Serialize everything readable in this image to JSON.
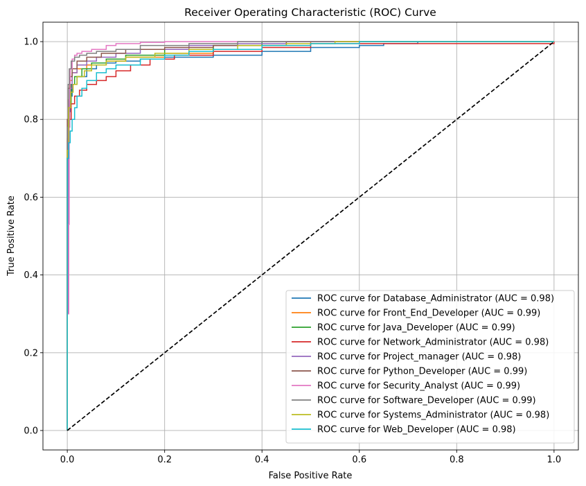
{
  "chart_data": {
    "type": "line",
    "title": "Receiver Operating Characteristic (ROC) Curve",
    "xlabel": "False Positive Rate",
    "ylabel": "True Positive Rate",
    "xlim": [
      -0.05,
      1.05
    ],
    "ylim": [
      -0.05,
      1.05
    ],
    "xticks": [
      "0.0",
      "0.2",
      "0.4",
      "0.6",
      "0.8",
      "1.0"
    ],
    "yticks": [
      "0.0",
      "0.2",
      "0.4",
      "0.6",
      "0.8",
      "1.0"
    ],
    "grid": true,
    "legend_position": "bottom-right",
    "series": [
      {
        "name": "ROC curve for Database_Administrator (AUC = 0.98)",
        "color": "#1f77b4",
        "x": [
          0,
          0,
          0.003,
          0.006,
          0.01,
          0.02,
          0.04,
          0.06,
          0.08,
          0.1,
          0.15,
          0.2,
          0.3,
          0.4,
          0.5,
          0.6,
          0.65,
          0.72,
          0.72,
          0.85,
          1.0
        ],
        "y": [
          0,
          0.7,
          0.82,
          0.86,
          0.89,
          0.91,
          0.93,
          0.94,
          0.945,
          0.95,
          0.955,
          0.96,
          0.965,
          0.975,
          0.985,
          0.99,
          0.995,
          0.995,
          1.0,
          1.0,
          1.0
        ]
      },
      {
        "name": "ROC curve for Front_End_Developer (AUC = 0.99)",
        "color": "#ff7f0e",
        "x": [
          0,
          0,
          0.002,
          0.005,
          0.01,
          0.02,
          0.04,
          0.08,
          0.12,
          0.2,
          0.3,
          0.4,
          0.5,
          1.0
        ],
        "y": [
          0,
          0.75,
          0.85,
          0.9,
          0.92,
          0.93,
          0.94,
          0.95,
          0.96,
          0.97,
          0.98,
          0.99,
          1.0,
          1.0
        ]
      },
      {
        "name": "ROC curve for Java_Developer (AUC = 0.99)",
        "color": "#2ca02c",
        "x": [
          0,
          0,
          0.003,
          0.008,
          0.015,
          0.03,
          0.05,
          0.08,
          0.12,
          0.2,
          0.3,
          0.4,
          1.0
        ],
        "y": [
          0,
          0.72,
          0.84,
          0.89,
          0.91,
          0.93,
          0.945,
          0.955,
          0.965,
          0.98,
          0.99,
          1.0,
          1.0
        ]
      },
      {
        "name": "ROC curve for Network_Administrator (AUC = 0.98)",
        "color": "#d62728",
        "x": [
          0,
          0,
          0.003,
          0.008,
          0.015,
          0.025,
          0.04,
          0.06,
          0.08,
          0.1,
          0.13,
          0.17,
          0.22,
          0.3,
          0.4,
          0.5,
          1.0
        ],
        "y": [
          0,
          0.7,
          0.8,
          0.84,
          0.86,
          0.875,
          0.89,
          0.9,
          0.91,
          0.925,
          0.94,
          0.955,
          0.965,
          0.975,
          0.985,
          0.995,
          1.0
        ]
      },
      {
        "name": "ROC curve for Project_manager (AUC = 0.98)",
        "color": "#9467bd",
        "x": [
          0,
          0,
          0.002,
          0.005,
          0.01,
          0.02,
          0.04,
          0.06,
          0.1,
          0.15,
          0.25,
          0.35,
          0.45,
          1.0
        ],
        "y": [
          0,
          0.3,
          0.78,
          0.88,
          0.92,
          0.94,
          0.95,
          0.96,
          0.97,
          0.98,
          0.99,
          0.995,
          1.0,
          1.0
        ]
      },
      {
        "name": "ROC curve for Python_Developer (AUC = 0.99)",
        "color": "#8c564b",
        "x": [
          0,
          0,
          0.002,
          0.005,
          0.01,
          0.02,
          0.04,
          0.07,
          0.12,
          0.2,
          0.3,
          0.45,
          1.0
        ],
        "y": [
          0,
          0.8,
          0.88,
          0.91,
          0.93,
          0.95,
          0.96,
          0.97,
          0.98,
          0.985,
          0.99,
          1.0,
          1.0
        ]
      },
      {
        "name": "ROC curve for Security_Analyst (AUC = 0.99)",
        "color": "#e377c2",
        "x": [
          0,
          0,
          0.003,
          0.004,
          0.006,
          0.01,
          0.015,
          0.02,
          0.03,
          0.05,
          0.08,
          0.1,
          0.15,
          0.2,
          0.3,
          1.0
        ],
        "y": [
          0,
          0.3,
          0.53,
          0.85,
          0.93,
          0.955,
          0.965,
          0.97,
          0.975,
          0.98,
          0.99,
          0.995,
          0.998,
          1.0,
          1.0,
          1.0
        ]
      },
      {
        "name": "ROC curve for Software_Developer (AUC = 0.99)",
        "color": "#7f7f7f",
        "x": [
          0,
          0,
          0.002,
          0.004,
          0.008,
          0.015,
          0.025,
          0.04,
          0.06,
          0.1,
          0.15,
          0.25,
          0.35,
          1.0
        ],
        "y": [
          0,
          0.78,
          0.89,
          0.93,
          0.95,
          0.96,
          0.965,
          0.97,
          0.975,
          0.98,
          0.99,
          0.995,
          1.0,
          1.0
        ]
      },
      {
        "name": "ROC curve for Systems_Administrator (AUC = 0.98)",
        "color": "#bcbd22",
        "x": [
          0,
          0,
          0.003,
          0.007,
          0.012,
          0.02,
          0.035,
          0.05,
          0.08,
          0.12,
          0.18,
          0.25,
          0.35,
          0.45,
          0.55,
          1.0
        ],
        "y": [
          0,
          0.72,
          0.83,
          0.87,
          0.89,
          0.91,
          0.925,
          0.94,
          0.95,
          0.96,
          0.97,
          0.98,
          0.99,
          0.995,
          1.0,
          1.0
        ]
      },
      {
        "name": "ROC curve for Web_Developer (AUC = 0.98)",
        "color": "#17becf",
        "x": [
          0,
          0,
          0.003,
          0.006,
          0.01,
          0.015,
          0.02,
          0.03,
          0.04,
          0.06,
          0.08,
          0.1,
          0.15,
          0.2,
          0.25,
          0.3,
          0.4,
          0.5,
          0.6,
          1.0
        ],
        "y": [
          0,
          0.7,
          0.74,
          0.77,
          0.8,
          0.83,
          0.86,
          0.88,
          0.9,
          0.92,
          0.93,
          0.94,
          0.955,
          0.965,
          0.975,
          0.98,
          0.99,
          0.995,
          1.0,
          1.0
        ]
      }
    ],
    "reference_line": {
      "x": [
        0,
        1
      ],
      "y": [
        0,
        1
      ],
      "color": "#000000",
      "style": "dashed"
    }
  }
}
